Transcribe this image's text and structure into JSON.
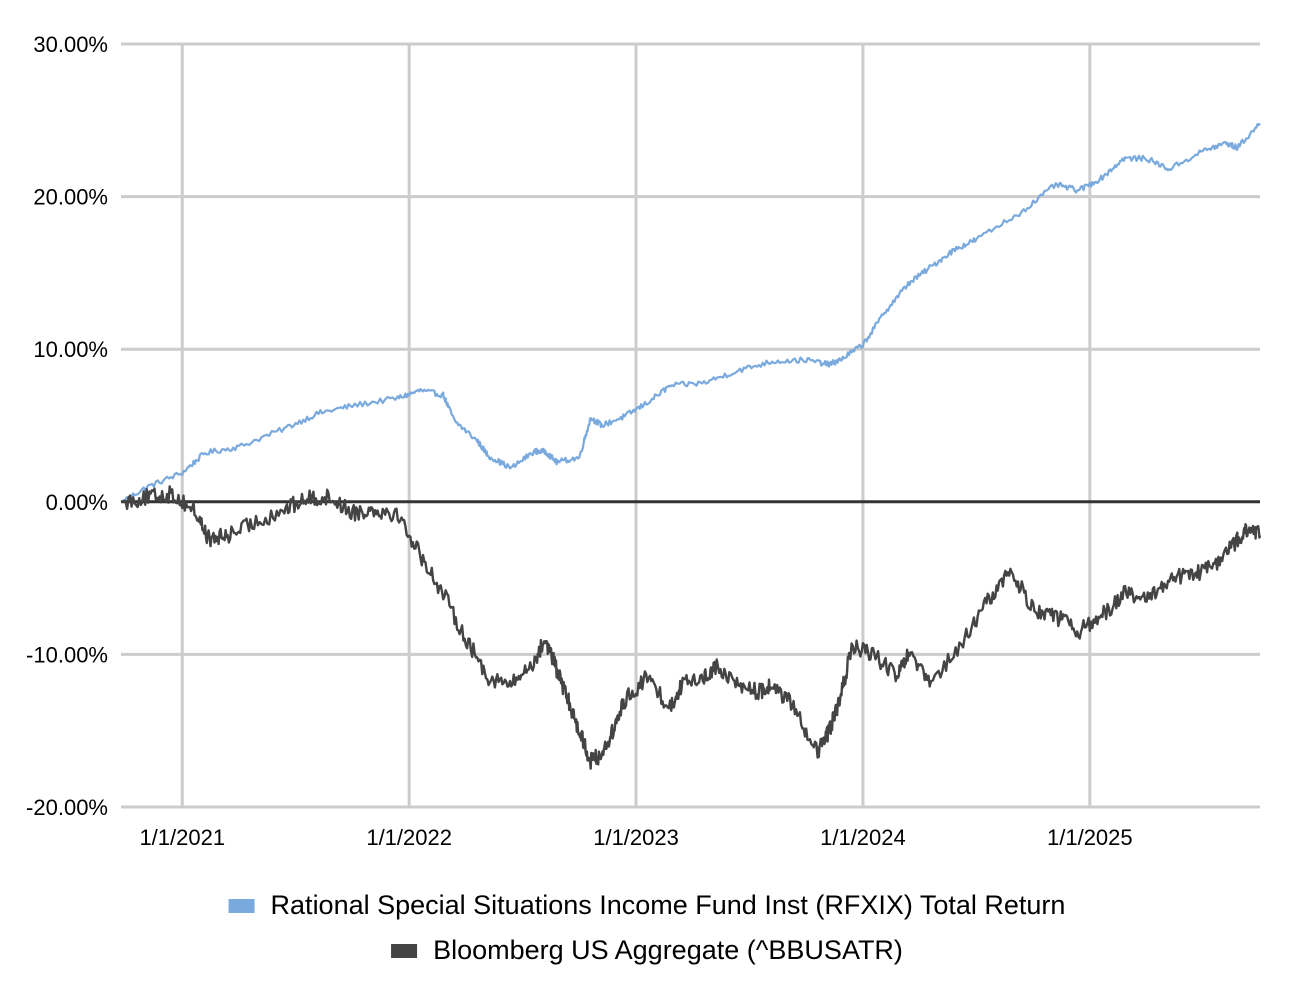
{
  "chart_data": {
    "type": "line",
    "title": "",
    "xlabel": "",
    "ylabel": "",
    "ylim": [
      -20,
      30
    ],
    "x_range": [
      2020.73,
      2025.75
    ],
    "y_ticks": [
      {
        "value": 30,
        "label": "30.00%"
      },
      {
        "value": 20,
        "label": "20.00%"
      },
      {
        "value": 10,
        "label": "10.00%"
      },
      {
        "value": 0,
        "label": "0.00%"
      },
      {
        "value": -10,
        "label": "-10.00%"
      },
      {
        "value": -20,
        "label": "-20.00%"
      }
    ],
    "x_ticks": [
      {
        "value": 2021,
        "label": "1/1/2021"
      },
      {
        "value": 2022,
        "label": "1/1/2022"
      },
      {
        "value": 2023,
        "label": "1/1/2023"
      },
      {
        "value": 2024,
        "label": "1/1/2024"
      },
      {
        "value": 2025,
        "label": "1/1/2025"
      }
    ],
    "grid": true,
    "legend_position": "bottom",
    "series": [
      {
        "name": "Rational Special Situations Income Fund Inst (RFXIX) Total Return",
        "color": "#7aaadd",
        "x": [
          2020.73,
          2020.85,
          2021.0,
          2021.1,
          2021.25,
          2021.45,
          2021.6,
          2021.75,
          2021.95,
          2022.05,
          2022.15,
          2022.2,
          2022.3,
          2022.35,
          2022.45,
          2022.55,
          2022.6,
          2022.65,
          2022.75,
          2022.8,
          2022.85,
          2022.95,
          2023.05,
          2023.15,
          2023.3,
          2023.45,
          2023.6,
          2023.75,
          2023.85,
          2023.9,
          2024.0,
          2024.1,
          2024.2,
          2024.3,
          2024.4,
          2024.5,
          2024.7,
          2024.85,
          2024.95,
          2025.05,
          2025.15,
          2025.25,
          2025.35,
          2025.5,
          2025.6,
          2025.65,
          2025.75
        ],
        "values": [
          0,
          1.0,
          1.9,
          3.2,
          3.6,
          4.8,
          5.8,
          6.3,
          6.8,
          7.3,
          7.0,
          5.3,
          4.0,
          3.0,
          2.2,
          3.3,
          3.3,
          2.6,
          2.9,
          5.5,
          5.0,
          5.6,
          6.5,
          7.6,
          7.8,
          8.6,
          9.2,
          9.3,
          9.0,
          9.3,
          10.3,
          12.5,
          14.3,
          15.4,
          16.5,
          17.2,
          19.0,
          20.8,
          20.4,
          21.2,
          22.5,
          22.5,
          21.8,
          23.0,
          23.5,
          23.2,
          24.8
        ]
      },
      {
        "name": "Bloomberg US Aggregate (^BBUSATR)",
        "color": "#444444",
        "x": [
          2020.73,
          2020.85,
          2020.95,
          2021.05,
          2021.12,
          2021.2,
          2021.3,
          2021.45,
          2021.55,
          2021.65,
          2021.75,
          2021.85,
          2021.95,
          2022.05,
          2022.15,
          2022.25,
          2022.35,
          2022.45,
          2022.55,
          2022.6,
          2022.65,
          2022.7,
          2022.75,
          2022.8,
          2022.85,
          2022.9,
          2022.95,
          2023.05,
          2023.15,
          2023.2,
          2023.3,
          2023.35,
          2023.45,
          2023.55,
          2023.6,
          2023.7,
          2023.8,
          2023.85,
          2023.9,
          2023.95,
          2024.05,
          2024.15,
          2024.2,
          2024.3,
          2024.45,
          2024.55,
          2024.65,
          2024.75,
          2024.85,
          2024.95,
          2025.05,
          2025.15,
          2025.25,
          2025.35,
          2025.45,
          2025.55,
          2025.65,
          2025.7,
          2025.75
        ],
        "values": [
          0,
          0.3,
          0.5,
          -0.5,
          -2.5,
          -2.2,
          -1.5,
          -0.5,
          0.2,
          0.3,
          -0.7,
          -0.5,
          -0.8,
          -3.5,
          -6.0,
          -9.0,
          -11.5,
          -12.0,
          -10.5,
          -9.0,
          -11.0,
          -13.0,
          -15.0,
          -17.0,
          -16.5,
          -15.0,
          -13.0,
          -11.5,
          -13.5,
          -12.0,
          -11.5,
          -10.8,
          -12.0,
          -12.5,
          -12.0,
          -13.5,
          -16.5,
          -15.0,
          -13.0,
          -9.5,
          -10.0,
          -11.5,
          -10.0,
          -12.0,
          -9.0,
          -6.5,
          -4.5,
          -7.0,
          -7.5,
          -8.5,
          -7.5,
          -6.0,
          -6.5,
          -5.0,
          -4.8,
          -4.2,
          -2.5,
          -1.8,
          -2.2
        ]
      }
    ]
  }
}
